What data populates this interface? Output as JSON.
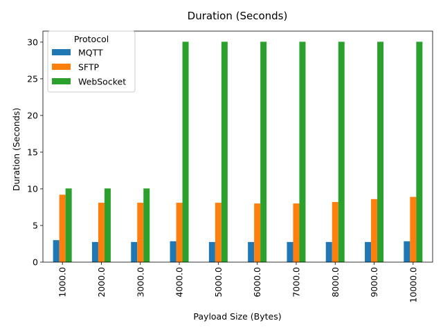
{
  "chart_data": {
    "type": "bar",
    "title": "Duration (Seconds)",
    "xlabel": "Payload Size (Bytes)",
    "ylabel": "Duration (Seconds)",
    "categories": [
      "1000.0",
      "2000.0",
      "3000.0",
      "4000.0",
      "5000.0",
      "6000.0",
      "7000.0",
      "8000.0",
      "9000.0",
      "10000.0"
    ],
    "ylim": [
      0,
      31.5
    ],
    "yticks": [
      0,
      5,
      10,
      15,
      20,
      25,
      30
    ],
    "grid": false,
    "legend": {
      "title": "Protocol",
      "placement": "top-left"
    },
    "series": [
      {
        "name": "MQTT",
        "color": "#1f77b4",
        "values": [
          3.0,
          2.75,
          2.75,
          2.85,
          2.75,
          2.75,
          2.75,
          2.75,
          2.75,
          2.85
        ]
      },
      {
        "name": "SFTP",
        "color": "#ff7f0e",
        "values": [
          9.2,
          8.1,
          8.1,
          8.1,
          8.1,
          8.0,
          8.0,
          8.2,
          8.6,
          8.9
        ]
      },
      {
        "name": "WebSocket",
        "color": "#2ca02c",
        "values": [
          10.05,
          10.05,
          10.05,
          30.05,
          30.05,
          30.05,
          30.05,
          30.05,
          30.05,
          30.05
        ]
      }
    ]
  }
}
